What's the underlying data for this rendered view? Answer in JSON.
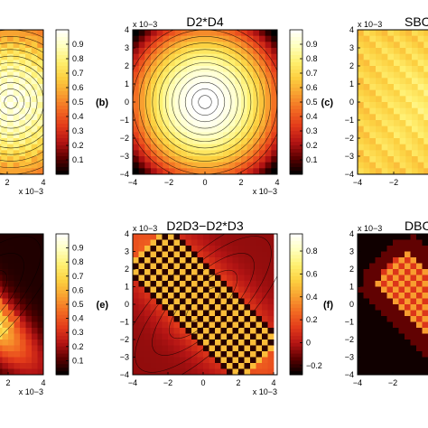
{
  "figure": {
    "colormap": [
      "#000000",
      "#5a0000",
      "#b41414",
      "#e23a1a",
      "#f26a22",
      "#f8a030",
      "#fcd040",
      "#fff070",
      "#ffffbf",
      "#ffffff"
    ],
    "axis_multiplier": "x 10−3"
  },
  "chart_data": [
    {
      "id": "a",
      "type": "heatmap",
      "panel_label": "",
      "title": "",
      "xlim": [
        -4,
        4
      ],
      "ylim": [
        -4,
        4
      ],
      "x_ticks": [
        "2",
        "4"
      ],
      "y_ticks": [],
      "x_multiplier": "x 10−3",
      "y_multiplier": "",
      "colorbar": {
        "ticks": [
          "0.9",
          "0.8",
          "0.7",
          "0.6",
          "0.5",
          "0.4",
          "0.3",
          "0.2",
          "0.1"
        ],
        "range": [
          0,
          1
        ]
      },
      "pattern": "radial_speckle"
    },
    {
      "id": "b",
      "type": "heatmap",
      "panel_label": "(b)",
      "title": "D2*D4",
      "xlim": [
        -4,
        4
      ],
      "ylim": [
        -4,
        4
      ],
      "x_ticks": [
        "−4",
        "−2",
        "0",
        "2",
        "4"
      ],
      "y_ticks": [
        "4",
        "3",
        "2",
        "1",
        "0",
        "−1",
        "−2",
        "−3",
        "−4"
      ],
      "x_multiplier": "x 10−3",
      "y_multiplier": "x 10−3",
      "colorbar": {
        "ticks": [
          "0.9",
          "0.8",
          "0.7",
          "0.6",
          "0.5",
          "0.4",
          "0.3",
          "0.2",
          "0.1"
        ],
        "range": [
          0,
          1
        ]
      },
      "pattern": "radial_smooth"
    },
    {
      "id": "c",
      "type": "heatmap",
      "panel_label": "(c)",
      "title": "SBC",
      "xlim": [
        -4,
        4
      ],
      "ylim": [
        -4,
        4
      ],
      "x_ticks": [
        "−4",
        "−2"
      ],
      "y_ticks": [
        "4",
        "3",
        "2",
        "1",
        "0",
        "−1",
        "−2",
        "−3",
        "−4"
      ],
      "x_multiplier": "",
      "y_multiplier": "x 10−3",
      "colorbar": null,
      "pattern": "flat_speckle"
    },
    {
      "id": "d",
      "type": "heatmap",
      "panel_label": "",
      "title": "",
      "xlim": [
        -4,
        4
      ],
      "ylim": [
        -4,
        4
      ],
      "x_ticks": [
        "2",
        "4"
      ],
      "y_ticks": [],
      "x_multiplier": "x 10−3",
      "y_multiplier": "",
      "colorbar": {
        "ticks": [
          "0.9",
          "0.8",
          "0.7",
          "0.6",
          "0.5",
          "0.4",
          "0.3",
          "0.2",
          "0.1"
        ],
        "range": [
          0,
          1
        ]
      },
      "pattern": "diagonal_soft"
    },
    {
      "id": "e",
      "type": "heatmap",
      "panel_label": "(e)",
      "title": "D2D3−D2*D3",
      "xlim": [
        -4,
        4
      ],
      "ylim": [
        -4,
        4
      ],
      "x_ticks": [
        "−4",
        "−2",
        "0",
        "2",
        "4"
      ],
      "y_ticks": [
        "4",
        "3",
        "2",
        "1",
        "0",
        "−1",
        "−2",
        "−3",
        "−4"
      ],
      "x_multiplier": "x 10−3",
      "y_multiplier": "x 10−3",
      "colorbar": {
        "ticks": [
          "0.8",
          "0.6",
          "0.4",
          "0.2",
          "0",
          "−0.2"
        ],
        "range": [
          -0.28,
          0.95
        ]
      },
      "pattern": "diagonal_checker"
    },
    {
      "id": "f",
      "type": "heatmap",
      "panel_label": "(f)",
      "title": "DBC",
      "xlim": [
        -4,
        4
      ],
      "ylim": [
        -4,
        4
      ],
      "x_ticks": [
        "−4",
        "−2"
      ],
      "y_ticks": [
        "4",
        "3",
        "2",
        "1",
        "0",
        "−1",
        "−2",
        "−3",
        "−4"
      ],
      "x_multiplier": "",
      "y_multiplier": "x 10−3",
      "colorbar": null,
      "pattern": "center_spot"
    }
  ]
}
